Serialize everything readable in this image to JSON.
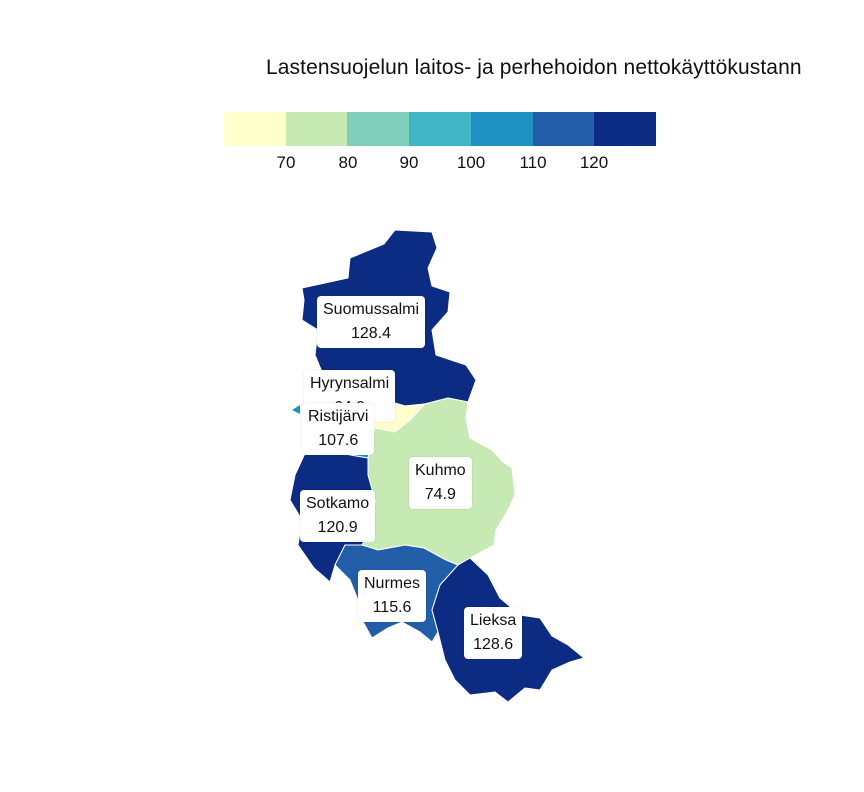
{
  "title": "Lastensuojelun laitos- ja perhehoidon nettokäyttökustann",
  "legend": {
    "colors": [
      "#ffffcc",
      "#c7e9b4",
      "#7fcdbb",
      "#41b6c4",
      "#1d91c0",
      "#225ea8",
      "#0c2c84"
    ],
    "ticks": [
      "70",
      "80",
      "90",
      "100",
      "110",
      "120"
    ]
  },
  "regions": [
    {
      "name": "Suomussalmi",
      "value": "128.4",
      "color": "#0c2c84"
    },
    {
      "name": "Hyrynsalmi",
      "value": "64.9",
      "color": "#ffffcc"
    },
    {
      "name": "Ristijärvi",
      "value": "107.6",
      "color": "#1d91c0"
    },
    {
      "name": "Kuhmo",
      "value": "74.9",
      "color": "#c7e9b4"
    },
    {
      "name": "Sotkamo",
      "value": "120.9",
      "color": "#0c2c84"
    },
    {
      "name": "Nurmes",
      "value": "115.6",
      "color": "#225ea8"
    },
    {
      "name": "Lieksa",
      "value": "128.6",
      "color": "#0c2c84"
    }
  ]
}
